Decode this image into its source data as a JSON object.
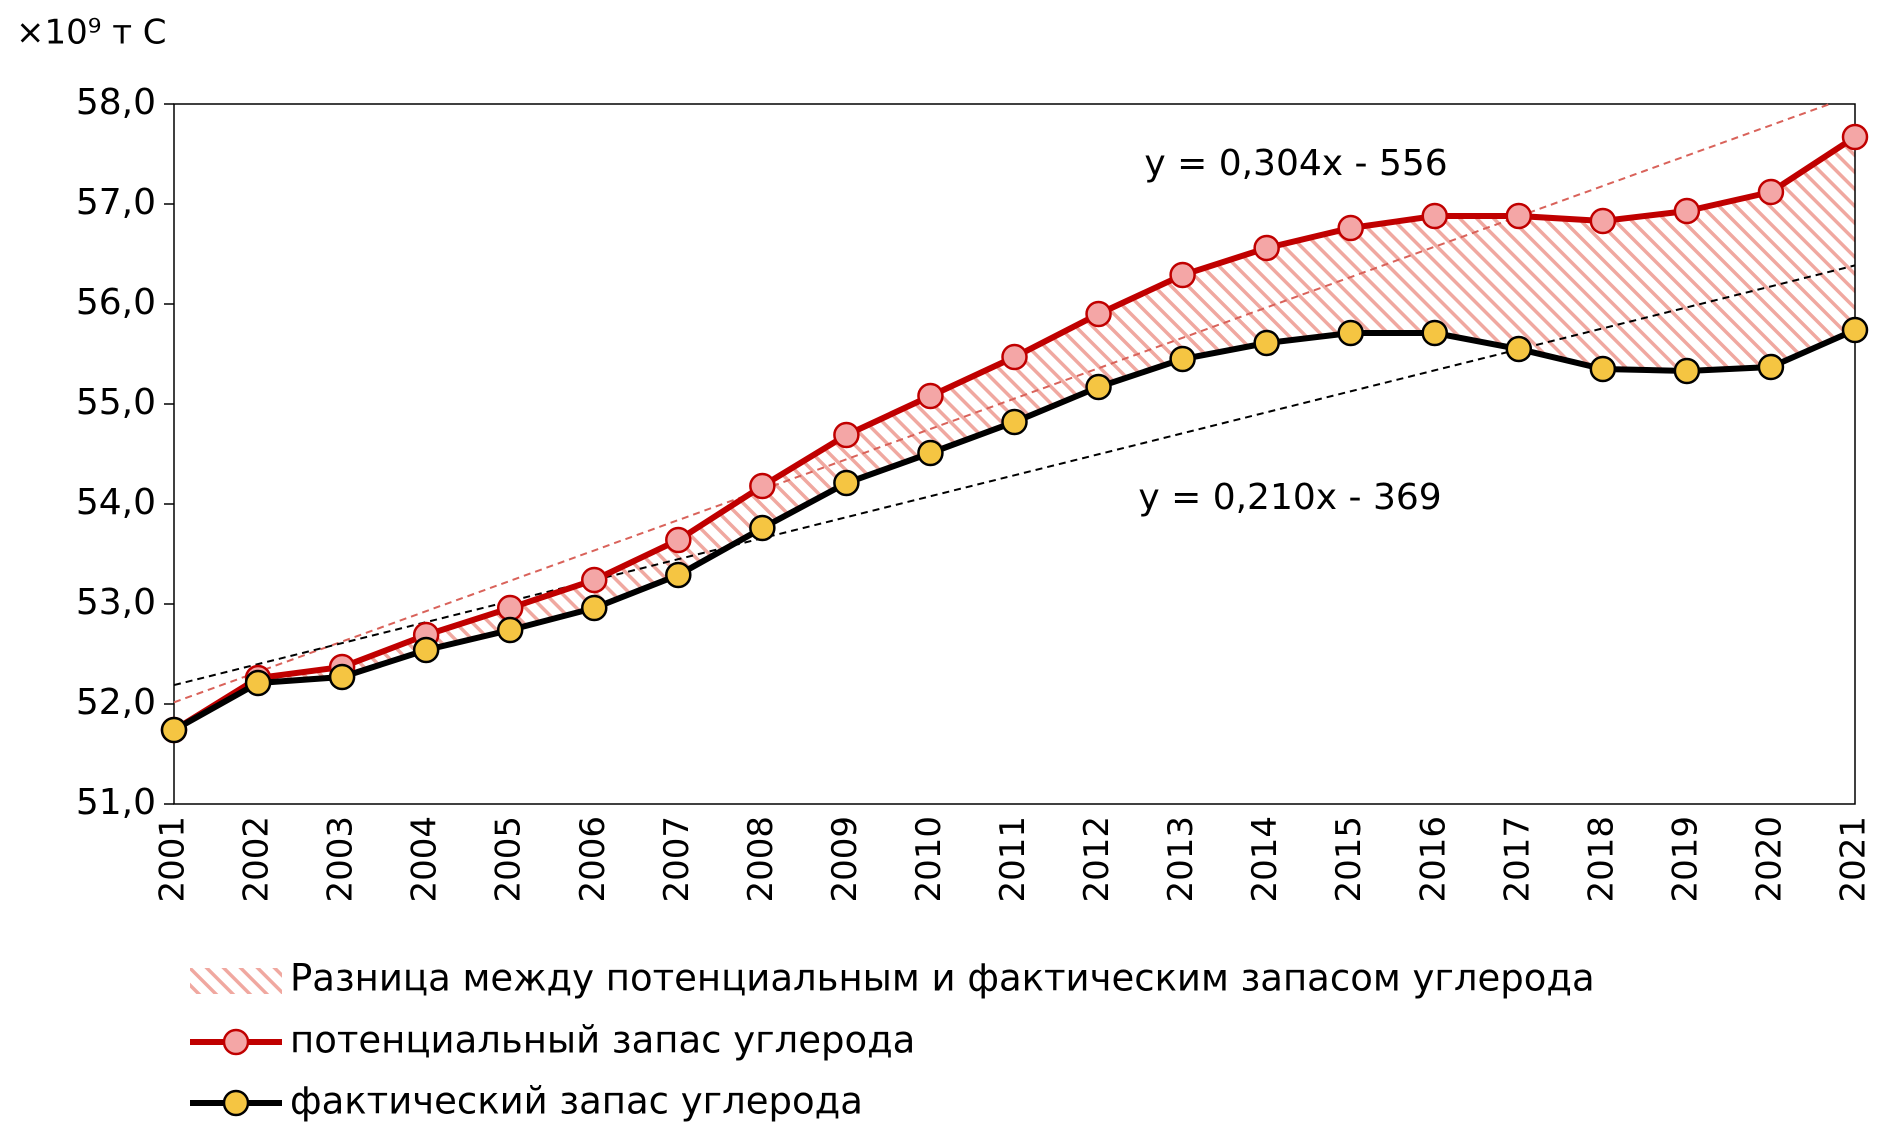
{
  "chart_data": {
    "type": "line",
    "y_unit": "×10⁹ т С",
    "categories": [
      "2001",
      "2002",
      "2003",
      "2004",
      "2005",
      "2006",
      "2007",
      "2008",
      "2009",
      "2010",
      "2011",
      "2012",
      "2013",
      "2014",
      "2015",
      "2016",
      "2017",
      "2018",
      "2019",
      "2020",
      "2021"
    ],
    "series": [
      {
        "name": "потенциальный запас углерода",
        "color": "#c00000",
        "marker_color": "#f4a6a6",
        "values": [
          51.74,
          52.26,
          52.37,
          52.69,
          52.96,
          53.24,
          53.64,
          54.18,
          54.69,
          55.08,
          55.47,
          55.9,
          56.29,
          56.56,
          56.76,
          56.88,
          56.88,
          56.83,
          56.93,
          57.12,
          57.67
        ],
        "trend_label": "y = 0,304x - 556"
      },
      {
        "name": "фактический запас углерода",
        "color": "#000000",
        "marker_color": "#f5c542",
        "values": [
          51.74,
          52.21,
          52.27,
          52.54,
          52.74,
          52.96,
          53.29,
          53.76,
          54.21,
          54.51,
          54.82,
          55.17,
          55.45,
          55.61,
          55.71,
          55.71,
          55.55,
          55.35,
          55.33,
          55.37,
          55.74
        ],
        "trend_label": "y = 0,210x - 369"
      }
    ],
    "difference_label": "Разница между потенциальным и фактическим запасом углерода",
    "ylim": [
      51,
      58
    ],
    "yticks": [
      {
        "value": 51,
        "label": "51,0"
      },
      {
        "value": 52,
        "label": "52,0"
      },
      {
        "value": 53,
        "label": "53,0"
      },
      {
        "value": 54,
        "label": "54,0"
      },
      {
        "value": 55,
        "label": "55,0"
      },
      {
        "value": 56,
        "label": "56,0"
      },
      {
        "value": 57,
        "label": "57,0"
      },
      {
        "value": 58,
        "label": "58,0"
      }
    ],
    "grid": false
  }
}
